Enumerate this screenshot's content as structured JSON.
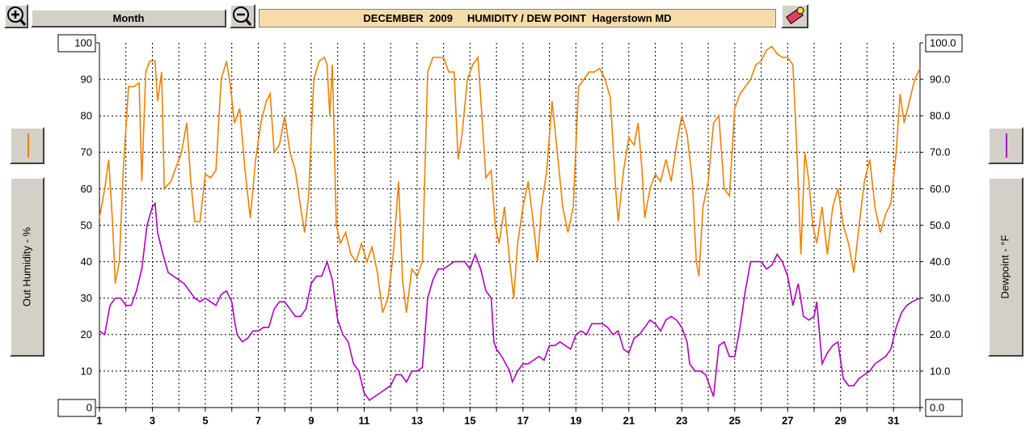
{
  "ui": {
    "range_button": "Month"
  },
  "chart_data": {
    "type": "line",
    "title": "DECEMBER  2009     HUMIDITY / DEW POINT  Hagerstown MD",
    "ylabel": "Out Humidity - %",
    "y2label": "Dewpoint - °F",
    "xlim": [
      1,
      32
    ],
    "xticks": [
      1,
      3,
      5,
      7,
      9,
      11,
      13,
      15,
      17,
      19,
      21,
      23,
      25,
      27,
      29,
      31
    ],
    "xminor_ticks": [
      2,
      4,
      6,
      8,
      10,
      12,
      14,
      16,
      18,
      20,
      22,
      24,
      26,
      28,
      30,
      32
    ],
    "ylim": [
      0,
      100
    ],
    "yticks": [
      0,
      10,
      20,
      30,
      40,
      50,
      60,
      70,
      80,
      90,
      100
    ],
    "y2lim": [
      0,
      100
    ],
    "y2ticks": [
      {
        "value": 0,
        "label": "0.0"
      },
      {
        "value": 10,
        "label": "10.0"
      },
      {
        "value": 20,
        "label": "20.0"
      },
      {
        "value": 30,
        "label": "30.0"
      },
      {
        "value": 40,
        "label": "40.0"
      },
      {
        "value": 50,
        "label": "50.0"
      },
      {
        "value": 60,
        "label": "60.0"
      },
      {
        "value": 70,
        "label": "70.0"
      },
      {
        "value": 80,
        "label": "80.0"
      },
      {
        "value": 90,
        "label": "90.0"
      },
      {
        "value": 100,
        "label": "100.0"
      }
    ],
    "grid": true,
    "series": [
      {
        "color": "#f08000",
        "axis": "y",
        "x": [
          1.0,
          1.2,
          1.35,
          1.5,
          1.6,
          1.75,
          1.9,
          2.1,
          2.3,
          2.5,
          2.6,
          2.75,
          2.9,
          3.1,
          3.2,
          3.35,
          3.45,
          3.7,
          3.9,
          4.1,
          4.3,
          4.45,
          4.6,
          4.8,
          5.0,
          5.2,
          5.4,
          5.6,
          5.8,
          5.95,
          6.1,
          6.3,
          6.5,
          6.7,
          6.9,
          7.1,
          7.3,
          7.45,
          7.6,
          7.8,
          8.0,
          8.2,
          8.4,
          8.6,
          8.75,
          8.9,
          9.1,
          9.3,
          9.5,
          9.6,
          9.7,
          9.8,
          9.95,
          10.1,
          10.3,
          10.5,
          10.7,
          10.9,
          11.1,
          11.3,
          11.5,
          11.7,
          11.9,
          12.1,
          12.3,
          12.45,
          12.6,
          12.8,
          13.0,
          13.2,
          13.4,
          13.6,
          13.8,
          14.0,
          14.2,
          14.4,
          14.55,
          14.7,
          14.9,
          15.1,
          15.3,
          15.45,
          15.6,
          15.8,
          15.95,
          16.1,
          16.3,
          16.5,
          16.65,
          16.8,
          17.0,
          17.2,
          17.4,
          17.55,
          17.7,
          17.9,
          18.1,
          18.3,
          18.5,
          18.7,
          18.9,
          19.1,
          19.3,
          19.5,
          19.7,
          19.9,
          20.1,
          20.3,
          20.5,
          20.6,
          20.8,
          21.0,
          21.2,
          21.35,
          21.5,
          21.6,
          21.8,
          22.0,
          22.2,
          22.4,
          22.6,
          22.8,
          23.0,
          23.2,
          23.4,
          23.55,
          23.65,
          23.8,
          24.0,
          24.2,
          24.4,
          24.6,
          24.8,
          25.0,
          25.2,
          25.4,
          25.6,
          25.8,
          26.0,
          26.2,
          26.4,
          26.6,
          26.8,
          27.0,
          27.2,
          27.35,
          27.5,
          27.65,
          27.8,
          27.95,
          28.1,
          28.3,
          28.5,
          28.7,
          28.9,
          29.1,
          29.3,
          29.5,
          29.7,
          29.9,
          30.1,
          30.3,
          30.5,
          30.7,
          30.9,
          31.1,
          31.25,
          31.4,
          31.6,
          31.8,
          32.0
        ],
        "values": [
          52,
          60,
          68,
          50,
          34,
          40,
          65,
          88,
          88,
          89,
          62,
          92,
          95,
          95,
          84,
          92,
          60,
          62,
          66,
          70,
          78,
          62,
          51,
          51,
          64,
          63,
          65,
          90,
          95,
          88,
          78,
          82,
          65,
          52,
          68,
          78,
          84,
          86,
          70,
          72,
          80,
          70,
          65,
          55,
          48,
          58,
          90,
          95,
          96,
          94,
          80,
          94,
          50,
          45,
          48,
          42,
          40,
          45,
          40,
          44,
          37,
          26,
          30,
          42,
          62,
          35,
          26,
          38,
          36,
          40,
          92,
          96,
          96,
          96,
          92,
          92,
          68,
          75,
          90,
          94,
          96,
          80,
          63,
          65,
          50,
          45,
          55,
          40,
          30,
          45,
          55,
          62,
          50,
          40,
          55,
          65,
          84,
          70,
          55,
          48,
          55,
          88,
          90,
          92,
          92,
          93,
          90,
          85,
          60,
          51,
          65,
          74,
          72,
          78,
          65,
          52,
          60,
          64,
          62,
          68,
          62,
          72,
          80,
          75,
          62,
          40,
          36,
          55,
          62,
          78,
          80,
          60,
          58,
          82,
          86,
          88,
          90,
          94,
          95,
          98,
          99,
          97,
          96,
          96,
          94,
          70,
          42,
          70,
          62,
          50,
          45,
          55,
          42,
          55,
          60,
          50,
          45,
          37,
          50,
          62,
          68,
          55,
          48,
          53,
          56,
          70,
          86,
          78,
          84,
          90,
          93
        ]
      },
      {
        "color": "#b000c0",
        "axis": "y2",
        "x": [
          1.0,
          1.2,
          1.4,
          1.6,
          1.8,
          2.0,
          2.2,
          2.4,
          2.6,
          2.8,
          3.0,
          3.1,
          3.2,
          3.4,
          3.6,
          3.8,
          4.0,
          4.2,
          4.4,
          4.6,
          4.8,
          5.0,
          5.2,
          5.4,
          5.6,
          5.8,
          6.0,
          6.1,
          6.2,
          6.4,
          6.6,
          6.8,
          7.0,
          7.2,
          7.4,
          7.6,
          7.8,
          8.0,
          8.2,
          8.4,
          8.6,
          8.8,
          9.0,
          9.2,
          9.4,
          9.6,
          9.8,
          10.0,
          10.2,
          10.4,
          10.6,
          10.8,
          11.0,
          11.2,
          11.4,
          11.6,
          11.8,
          12.0,
          12.2,
          12.4,
          12.6,
          12.8,
          13.0,
          13.2,
          13.4,
          13.6,
          13.8,
          14.0,
          14.2,
          14.4,
          14.6,
          14.8,
          15.0,
          15.2,
          15.4,
          15.6,
          15.8,
          15.9,
          16.0,
          16.2,
          16.5,
          16.6,
          16.8,
          17.0,
          17.2,
          17.4,
          17.6,
          17.8,
          18.0,
          18.2,
          18.4,
          18.6,
          18.8,
          19.0,
          19.2,
          19.4,
          19.6,
          19.8,
          20.0,
          20.2,
          20.4,
          20.6,
          20.8,
          21.0,
          21.2,
          21.4,
          21.6,
          21.8,
          22.0,
          22.2,
          22.4,
          22.6,
          22.8,
          23.0,
          23.2,
          23.3,
          23.5,
          23.7,
          23.9,
          24.1,
          24.2,
          24.4,
          24.6,
          24.8,
          25.0,
          25.2,
          25.4,
          25.6,
          25.8,
          26.0,
          26.2,
          26.4,
          26.6,
          26.8,
          27.0,
          27.2,
          27.4,
          27.6,
          27.8,
          28.0,
          28.1,
          28.3,
          28.5,
          28.7,
          28.9,
          29.1,
          29.3,
          29.5,
          29.7,
          29.9,
          30.1,
          30.3,
          30.5,
          30.7,
          30.9,
          31.1,
          31.3,
          31.5,
          31.7,
          32.0
        ],
        "values": [
          21,
          20,
          28,
          30,
          30,
          28,
          28,
          32,
          38,
          50,
          55,
          56,
          48,
          42,
          37,
          36,
          35,
          34,
          32,
          30,
          29,
          30,
          29,
          28,
          31,
          32,
          29,
          24,
          20,
          18,
          19,
          21,
          21,
          22,
          22,
          27,
          29,
          29,
          27,
          25,
          25,
          27,
          34,
          36,
          36,
          40,
          35,
          24,
          20,
          18,
          12,
          10,
          4,
          2,
          3,
          4,
          5,
          6,
          9,
          9,
          7,
          10,
          10,
          11,
          30,
          35,
          38,
          38,
          39,
          40,
          40,
          40,
          38,
          42,
          38,
          32,
          30,
          18,
          16,
          14,
          10,
          7,
          10,
          12,
          12,
          13,
          14,
          13,
          17,
          17,
          18,
          17,
          16,
          20,
          21,
          20,
          23,
          23,
          23,
          22,
          20,
          21,
          16,
          15,
          19,
          20,
          22,
          24,
          23,
          21,
          24,
          25,
          24,
          22,
          18,
          12,
          10,
          10,
          9,
          5,
          3,
          17,
          18,
          14,
          14,
          22,
          32,
          40,
          40,
          40,
          38,
          39,
          42,
          40,
          36,
          28,
          34,
          25,
          24,
          25,
          29,
          12,
          15,
          17,
          18,
          8,
          6,
          6,
          8,
          9,
          10,
          12,
          13,
          14,
          16,
          22,
          26,
          28,
          29,
          30
        ]
      }
    ]
  }
}
